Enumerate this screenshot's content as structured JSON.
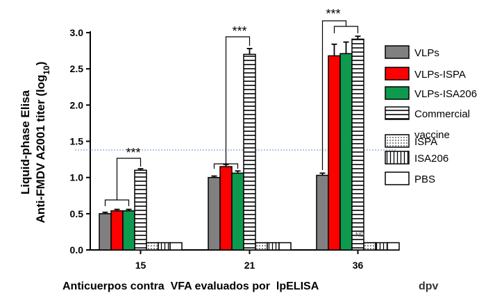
{
  "chart_data": {
    "type": "bar",
    "categories": [
      "15",
      "21",
      "36"
    ],
    "ylabel_line1": "Liquid-phase Elisa",
    "ylabel_line2_prefix": "Anti-FMDV A2001 titer (log",
    "ylabel_line2_sub": "10",
    "ylabel_line2_suffix": ")",
    "xlabel_caption": "Anticuerpos contra  VFA evaluados por  lpELISA",
    "xlabel_unit": "dpv",
    "ylim": [
      0,
      3.0
    ],
    "yticks": [
      "0.0",
      "0.5",
      "1.0",
      "1.5",
      "2.0",
      "2.5",
      "3.0"
    ],
    "legend_position": "right",
    "threshold_line": 1.38,
    "series": [
      {
        "name": "VLPs",
        "color": "#808080",
        "pattern": "solid",
        "values": [
          0.5,
          1.0,
          1.03
        ],
        "errors": [
          0.02,
          0.02,
          0.03
        ]
      },
      {
        "name": "VLPs-ISPA",
        "color": "#ff0000",
        "pattern": "solid",
        "values": [
          0.54,
          1.15,
          2.68
        ],
        "errors": [
          0.02,
          0.03,
          0.16
        ]
      },
      {
        "name": "VLPs-ISA206",
        "color": "#0e9a4e",
        "pattern": "solid",
        "values": [
          0.54,
          1.06,
          2.71
        ],
        "errors": [
          0.02,
          0.03,
          0.16
        ]
      },
      {
        "name": "Commercial vaccine",
        "legend_lines": [
          "Commercial",
          "vaccine"
        ],
        "color": "#ffffff",
        "pattern": "hstripe",
        "values": [
          1.1,
          2.7,
          2.91
        ],
        "errors": [
          0.02,
          0.08,
          0.04
        ]
      },
      {
        "name": "ISPA",
        "color": "#ffffff",
        "pattern": "dotted",
        "values": [
          0.1,
          0.1,
          0.1
        ],
        "errors": [
          0,
          0,
          0
        ]
      },
      {
        "name": "ISA206",
        "color": "#ffffff",
        "pattern": "vstripe",
        "values": [
          0.1,
          0.1,
          0.1
        ],
        "errors": [
          0,
          0,
          0
        ]
      },
      {
        "name": "PBS",
        "color": "#ffffff",
        "pattern": "solid",
        "values": [
          0.1,
          0.1,
          0.1
        ],
        "errors": [
          0,
          0,
          0
        ]
      }
    ],
    "significance": [
      {
        "group": "15",
        "label": "***"
      },
      {
        "group": "21",
        "label": "***"
      },
      {
        "group": "36",
        "label": "***"
      }
    ],
    "annotation_nd": "ND"
  }
}
